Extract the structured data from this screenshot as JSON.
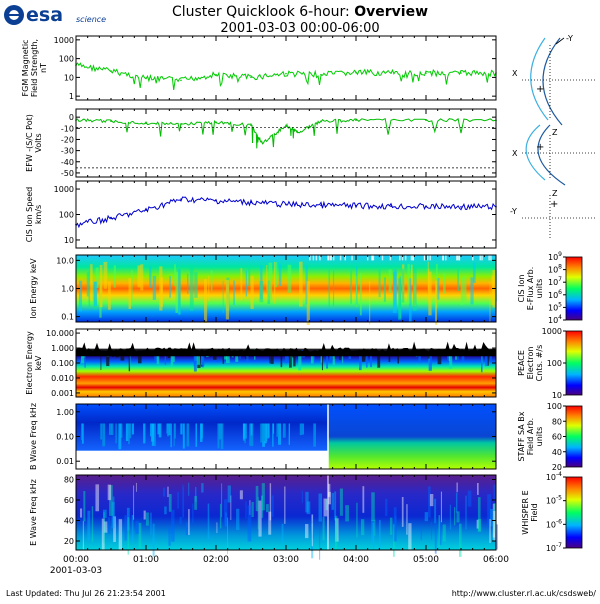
{
  "header": {
    "logo_text": "esa",
    "logo_subtext": "science",
    "title_prefix": "Cluster Quicklook 6-hour: ",
    "title_bold": "Overview",
    "subtitle": "2001-03-03 00:00-06:00"
  },
  "footer": {
    "last_updated": "Last Updated:  Thu Jul 26 21:23:54 2001",
    "url": "http://www.cluster.rl.ac.uk/csdsweb/",
    "start_date": "2001-03-03"
  },
  "colors": {
    "fgm": "#00cc00",
    "efw": "#00bb00",
    "cis": "#0000cc",
    "bg_spectro": "#0a1a90",
    "orbit": "#1e5aa0",
    "orbit_light": "#3cb0e0"
  },
  "chart_data": [
    {
      "type": "line",
      "title": "",
      "ylabel": "FGM Magnetic Field Strength, nT",
      "y_scale": "log",
      "ylim": [
        1,
        1000
      ],
      "ytick_labels": [
        "1000",
        "100",
        "10",
        "1"
      ],
      "x": [
        "00:00",
        "00:30",
        "01:00",
        "01:30",
        "02:00",
        "02:30",
        "03:00",
        "03:30",
        "04:00",
        "04:30",
        "05:00",
        "05:30",
        "06:00"
      ],
      "series": [
        {
          "values": [
            45,
            22,
            9,
            7,
            14,
            10,
            16,
            14,
            18,
            17,
            17,
            17,
            17
          ]
        }
      ]
    },
    {
      "type": "line",
      "title": "",
      "ylabel": "EFW -(S/C Pot) Volts",
      "ylim": [
        -55,
        0
      ],
      "ytick_labels": [
        "0",
        "-10",
        "-20",
        "-30",
        "-40",
        "-50"
      ],
      "x": [
        "00:00",
        "00:30",
        "01:00",
        "01:30",
        "02:00",
        "02:30",
        "02:40",
        "03:00",
        "03:10",
        "03:30",
        "04:00",
        "05:00",
        "06:00"
      ],
      "series": [
        {
          "values": [
            -3,
            -4,
            -6,
            -7,
            -5,
            -8,
            -26,
            -8,
            -15,
            -4,
            -3,
            -3,
            -3
          ]
        }
      ]
    },
    {
      "type": "line",
      "title": "",
      "ylabel": "CIS Ion Speed km/s",
      "y_scale": "log",
      "ylim": [
        10,
        1000
      ],
      "ytick_labels": [
        "1000",
        "100",
        "10"
      ],
      "x": [
        "00:00",
        "00:30",
        "01:00",
        "01:30",
        "02:00",
        "02:30",
        "03:00",
        "03:30",
        "04:00",
        "04:30",
        "05:00",
        "05:30",
        "06:00"
      ],
      "series": [
        {
          "values": [
            40,
            70,
            150,
            400,
            350,
            300,
            250,
            230,
            220,
            210,
            205,
            200,
            200
          ]
        }
      ]
    },
    {
      "type": "heatmap",
      "ylabel": "Ion Energy keV",
      "ytick_labels": [
        "10.0",
        "1.0",
        "0.1"
      ],
      "colorbar_label": "CIS Ion E-Flux Arb. units",
      "colorbar_ticks": [
        "10^9",
        "10^8",
        "10^7",
        "10^6",
        "10^5",
        "10^4"
      ]
    },
    {
      "type": "heatmap",
      "ylabel": "Electron Energy keV",
      "ytick_labels": [
        "10.000",
        "1.000",
        "0.100",
        "0.010",
        "0.001"
      ],
      "colorbar_label": "PEACE Electron Cnts. #/s",
      "colorbar_ticks": [
        "1000",
        "100",
        "10"
      ]
    },
    {
      "type": "heatmap",
      "ylabel": "B Wave Freq kHz",
      "ytick_labels": [
        "1.00",
        "0.10",
        "0.01"
      ],
      "colorbar_label": "STAFF SA Bx Field Arb. units",
      "colorbar_ticks": [
        "100",
        "80",
        "60",
        "40",
        "20"
      ]
    },
    {
      "type": "heatmap",
      "ylabel": "E Wave Freq kHz",
      "ytick_labels": [
        "80",
        "60",
        "40",
        "20"
      ],
      "colorbar_label": "WHISPER E Field",
      "colorbar_ticks": [
        "10^-4",
        "10^-5",
        "10^-6",
        "10^-7"
      ]
    }
  ],
  "x_axis": {
    "tick_labels": [
      "00:00",
      "01:00",
      "02:00",
      "03:00",
      "04:00",
      "05:00",
      "06:00"
    ]
  },
  "orbit": {
    "labels": [
      "-Y",
      "X",
      "Z",
      "X",
      "Z",
      "-Y"
    ]
  }
}
